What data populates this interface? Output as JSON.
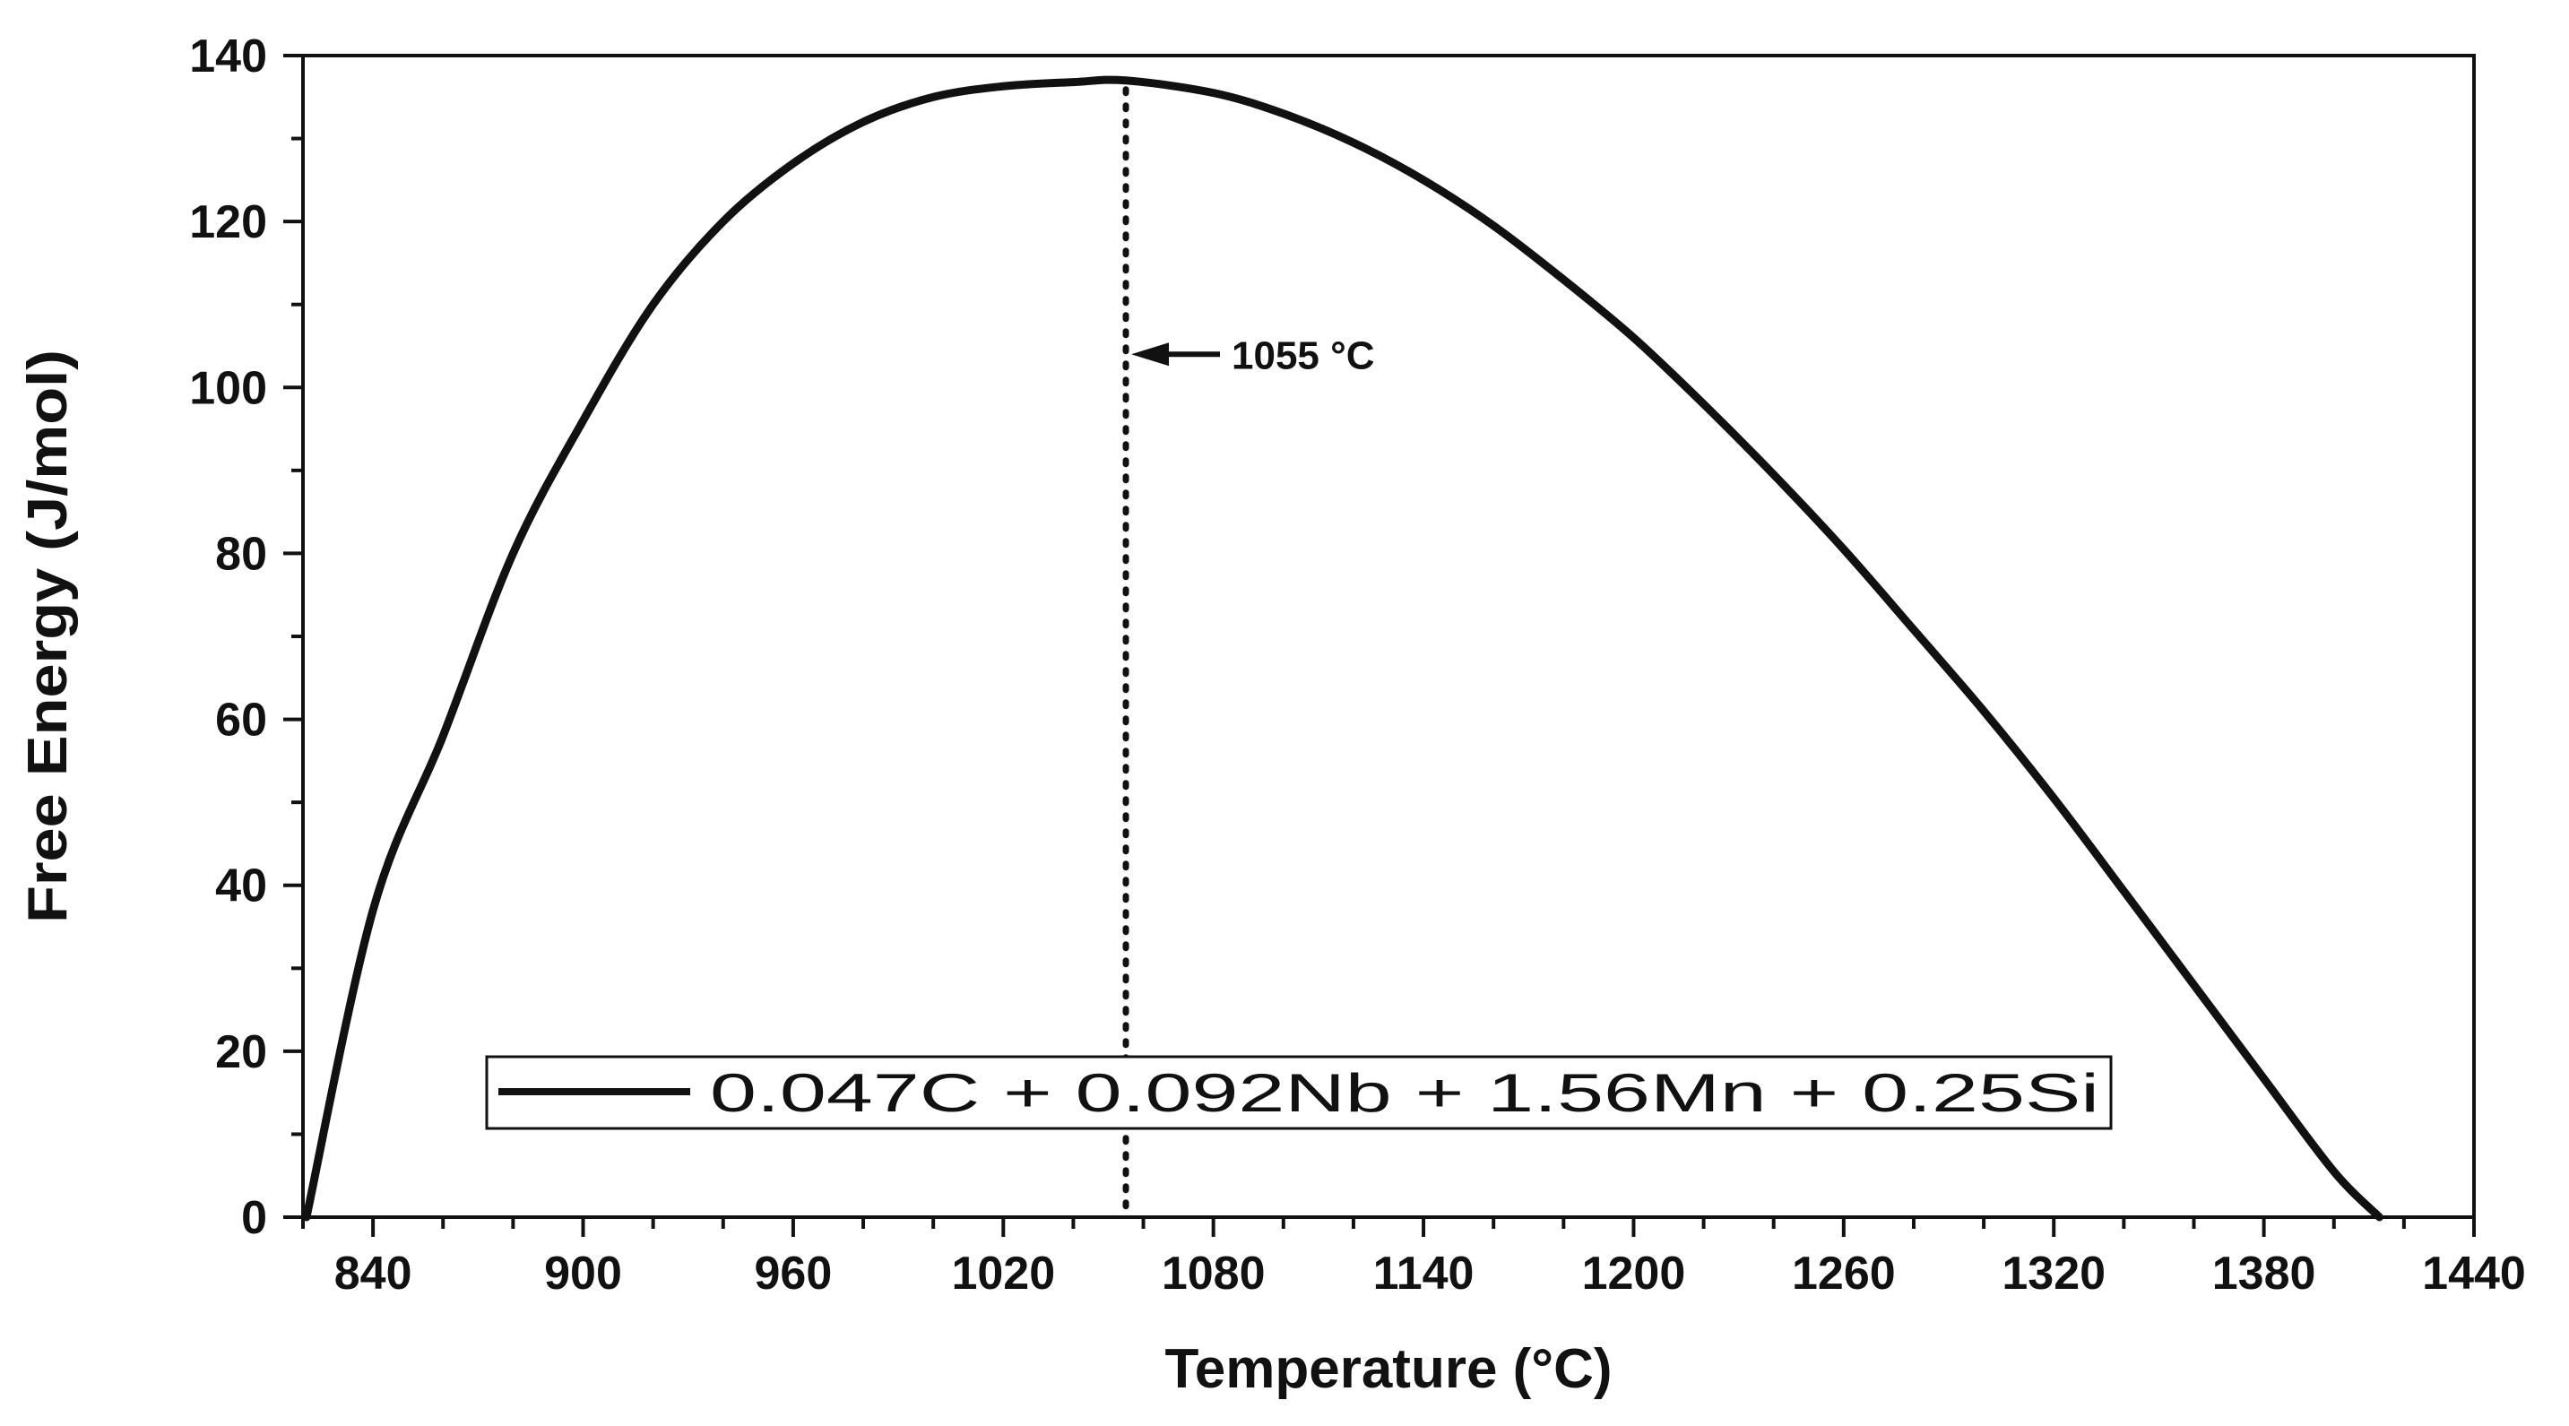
{
  "chart_data": {
    "type": "line",
    "title": "",
    "xlabel": "Temperature (°C)",
    "ylabel": "Free Energy (J/mol)",
    "xlim": [
      820,
      1440
    ],
    "ylim": [
      0,
      140
    ],
    "x_ticks": [
      840,
      900,
      960,
      1020,
      1080,
      1140,
      1200,
      1260,
      1320,
      1380,
      1440
    ],
    "x_tick_labels": [
      "840",
      "900",
      "960",
      "1020",
      "1080",
      "1140",
      "1200",
      "1260",
      "1320",
      "1380",
      "1440"
    ],
    "x_minor_step": 20,
    "y_ticks": [
      0,
      20,
      40,
      60,
      80,
      100,
      120,
      140
    ],
    "y_tick_labels": [
      "0",
      "20",
      "40",
      "60",
      "80",
      "100",
      "120",
      "140"
    ],
    "y_minor_step": 10,
    "grid": false,
    "legend_position": "bottom-center",
    "series": [
      {
        "name": "0.047C + 0.092Nb + 1.56Mn + 0.25Si",
        "color": "#111111",
        "x": [
          821,
          840,
          860,
          880,
          900,
          920,
          940,
          960,
          980,
          1000,
          1020,
          1040,
          1055,
          1080,
          1100,
          1120,
          1140,
          1160,
          1180,
          1200,
          1220,
          1240,
          1260,
          1280,
          1300,
          1320,
          1340,
          1360,
          1380,
          1400,
          1413
        ],
        "y": [
          0,
          37,
          58,
          80,
          96,
          110,
          120,
          127,
          132,
          135,
          136.3,
          136.8,
          137,
          135.5,
          133,
          129.5,
          125,
          119.5,
          113,
          106,
          98,
          89.5,
          80.5,
          70.8,
          61,
          50.5,
          39.3,
          28,
          16.7,
          5.5,
          0
        ]
      }
    ],
    "annotations": [
      {
        "text": "1055 °C",
        "x": 1055,
        "y": 104,
        "style": "dotted-vertical-line-with-arrow"
      }
    ],
    "reference_line": {
      "x": 1055,
      "style": "dotted"
    }
  }
}
